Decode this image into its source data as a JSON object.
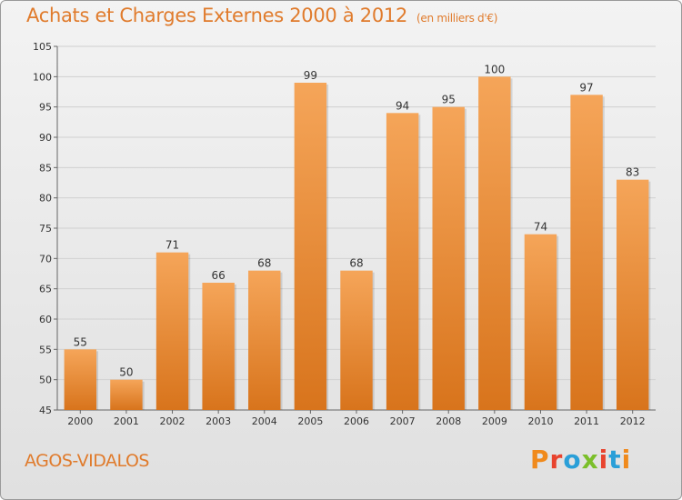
{
  "header": {
    "title": "Achats et Charges Externes 2000 à 2012",
    "subtitle": "(en milliers d'€)"
  },
  "footer": {
    "commune": "AGOS-VIDALOS",
    "logo_text": "Proxiti",
    "logo_colors": [
      "#f08a1c",
      "#e8432e",
      "#2a9fd8",
      "#7bbf2a",
      "#e8432e",
      "#2a9fd8",
      "#f08a1c"
    ]
  },
  "colors": {
    "bar_top": "#f5a559",
    "bar_bottom": "#d8741c",
    "title": "#e07b2c",
    "grid": "#d0d0d0",
    "axis": "#666666"
  },
  "chart_data": {
    "type": "bar",
    "categories": [
      "2000",
      "2001",
      "2002",
      "2003",
      "2004",
      "2005",
      "2006",
      "2007",
      "2008",
      "2009",
      "2010",
      "2011",
      "2012"
    ],
    "values": [
      55,
      50,
      71,
      66,
      68,
      99,
      68,
      94,
      95,
      100,
      74,
      97,
      83
    ],
    "ylim": [
      45,
      105
    ],
    "yticks": [
      45,
      50,
      55,
      60,
      65,
      70,
      75,
      80,
      85,
      90,
      95,
      100,
      105
    ],
    "grid": true,
    "data_labels": true
  }
}
